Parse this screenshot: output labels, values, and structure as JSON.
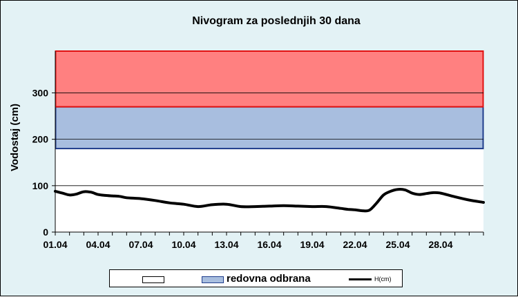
{
  "chart_data": {
    "type": "line",
    "title": "Nivogram za poslednjih 30 dana",
    "xlabel": "",
    "ylabel": "Vodostaj (cm)",
    "ylim": [
      0,
      390
    ],
    "yticks": [
      0,
      100,
      200,
      300
    ],
    "x_tick_labels": [
      "01.04",
      "04.04",
      "07.04",
      "10.04",
      "13.04",
      "16.04",
      "19.04",
      "22.04",
      "25.04",
      "28.04"
    ],
    "x_tick_day_index": [
      0,
      3,
      6,
      9,
      12,
      15,
      18,
      21,
      24,
      27
    ],
    "x_day_count": 31,
    "grid": true,
    "legend_position": "bottom",
    "bands": [
      {
        "name": "",
        "from": 180,
        "to": 270,
        "color": "#a8bedf",
        "border": "#1f3d8c"
      },
      {
        "name": "",
        "from": 270,
        "to": 390,
        "color": "#ff8080",
        "border": "#e01010"
      }
    ],
    "plot_background": "#ffffff",
    "frame_background": "#e3f2f5",
    "series": [
      {
        "name": "H(cm)",
        "color": "#000000",
        "x": [
          0,
          0.5,
          1,
          1.5,
          2,
          2.5,
          3,
          3.5,
          4,
          4.5,
          5,
          6,
          7,
          8,
          9,
          10,
          11,
          12,
          13,
          14,
          15,
          16,
          17,
          18,
          19,
          20,
          20.5,
          21,
          21.5,
          22,
          22.5,
          23,
          23.5,
          24,
          24.5,
          25,
          25.5,
          26,
          26.5,
          27,
          28,
          29,
          30
        ],
        "values": [
          88,
          84,
          80,
          82,
          87,
          86,
          81,
          79,
          78,
          77,
          74,
          72,
          68,
          63,
          60,
          55,
          59,
          60,
          55,
          55,
          56,
          57,
          56,
          55,
          55,
          51,
          49,
          48,
          46,
          47,
          62,
          80,
          88,
          92,
          91,
          84,
          81,
          83,
          85,
          84,
          76,
          69,
          64
        ]
      }
    ]
  },
  "legend": {
    "items": [
      {
        "label": "",
        "color": "#ffffff"
      },
      {
        "label": "redovna odbrana",
        "color": "#a8bedf"
      },
      {
        "label": "H(cm)",
        "color": "#000000"
      }
    ]
  }
}
